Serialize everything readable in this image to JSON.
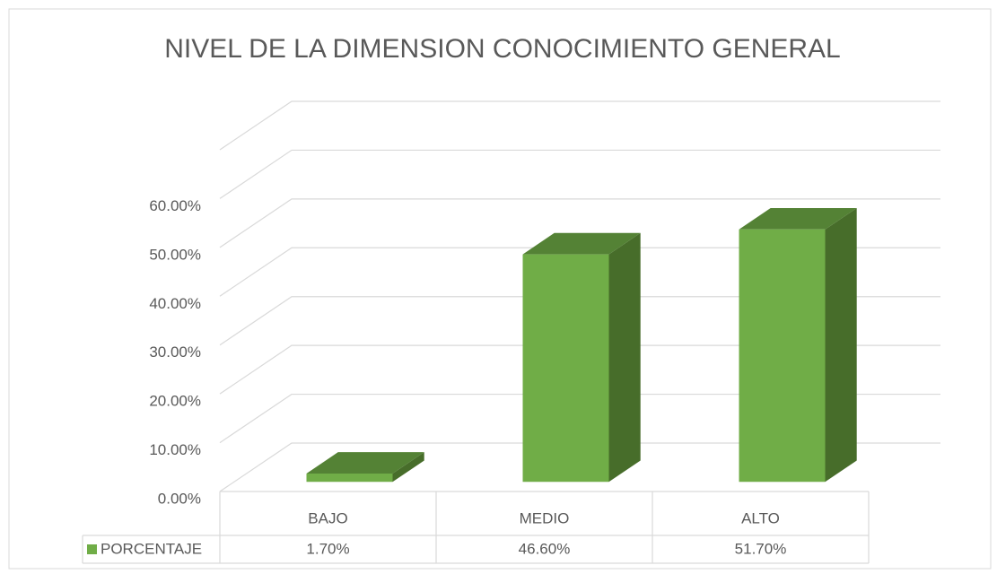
{
  "chart_data": {
    "type": "bar3d",
    "title": "NIVEL DE LA DIMENSION CONOCIMIENTO GENERAL",
    "categories": [
      "BAJO",
      "MEDIO",
      "ALTO"
    ],
    "series": [
      {
        "name": "PORCENTAJE",
        "color": "#70ad47",
        "values": [
          1.7,
          46.6,
          51.7
        ],
        "value_labels": [
          "1.70%",
          "46.60%",
          "51.70%"
        ]
      }
    ],
    "ylim": [
      0,
      70
    ],
    "yticks": [
      {
        "value": 0,
        "label": "0.00%"
      },
      {
        "value": 10,
        "label": "10.00%"
      },
      {
        "value": 20,
        "label": "20.00%"
      },
      {
        "value": 30,
        "label": "30.00%"
      },
      {
        "value": 40,
        "label": "40.00%"
      },
      {
        "value": 50,
        "label": "50.00%"
      },
      {
        "value": 60,
        "label": "60.00%"
      }
    ],
    "grid": true,
    "data_table": true
  }
}
